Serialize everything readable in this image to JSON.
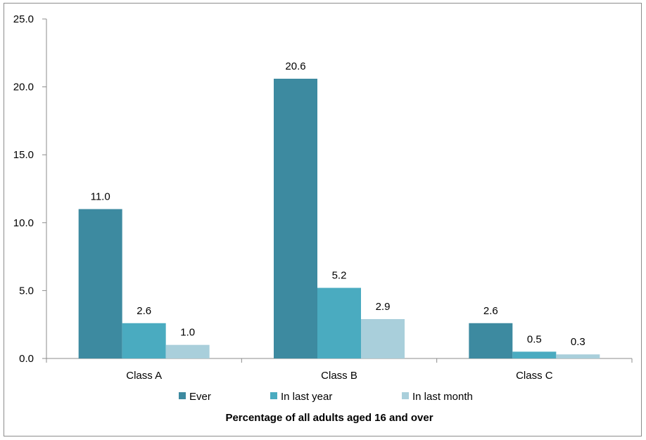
{
  "chart_data": {
    "type": "bar",
    "title": "",
    "xlabel": "Percentage of all adults aged 16 and over",
    "ylabel": "",
    "ylim": [
      0,
      25
    ],
    "yticks": [
      "0.0",
      "5.0",
      "10.0",
      "15.0",
      "20.0",
      "25.0"
    ],
    "categories": [
      "Class A",
      "Class B",
      "Class C"
    ],
    "series": [
      {
        "name": "Ever",
        "color": "#3d8aa0",
        "values": [
          11.0,
          20.6,
          2.6
        ],
        "labels": [
          "11.0",
          "20.6",
          "2.6"
        ]
      },
      {
        "name": "In last year",
        "color": "#4aabc0",
        "values": [
          2.6,
          5.2,
          0.5
        ],
        "labels": [
          "2.6",
          "5.2",
          "0.5"
        ]
      },
      {
        "name": "In last month",
        "color": "#a9cfdb",
        "values": [
          1.0,
          2.9,
          0.3
        ],
        "labels": [
          "1.0",
          "2.9",
          "0.3"
        ]
      }
    ],
    "grid": false,
    "legend_position": "bottom"
  }
}
